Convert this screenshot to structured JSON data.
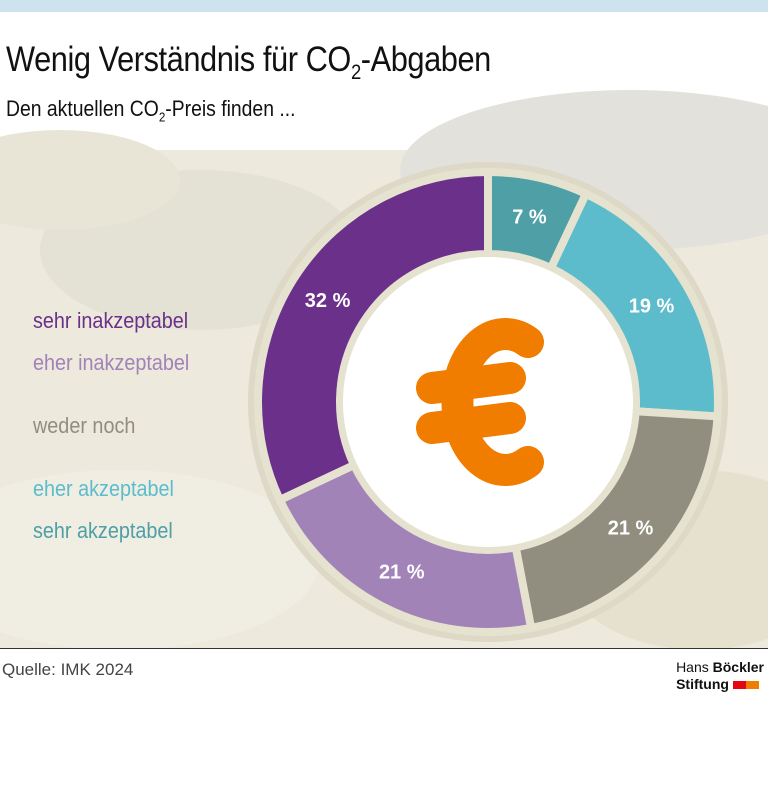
{
  "title": {
    "pre": "Wenig Verständnis für CO",
    "sub": "2",
    "post": "-Abgaben"
  },
  "subtitle": {
    "pre": "Den aktuellen CO",
    "sub": "2",
    "post": "-Preis finden ..."
  },
  "chart_data": {
    "type": "pie",
    "donut": true,
    "series": [
      {
        "name": "sehr akzeptabel",
        "value": 7,
        "label": "7 %",
        "color": "#4e9fa6"
      },
      {
        "name": "eher akzeptabel",
        "value": 19,
        "label": "19 %",
        "color": "#5dbccc"
      },
      {
        "name": "weder noch",
        "value": 21,
        "label": "21 %",
        "color": "#918e80"
      },
      {
        "name": "eher inakzeptabel",
        "value": 21,
        "label": "21 %",
        "color": "#a183b8"
      },
      {
        "name": "sehr inakzeptabel",
        "value": 32,
        "label": "32 %",
        "color": "#6b318a"
      }
    ],
    "legend": [
      "sehr inakzeptabel",
      "eher inakzeptabel",
      "weder noch",
      "eher akzeptabel",
      "sehr akzeptabel"
    ],
    "legend_placement": "left",
    "center_icon": "euro-icon",
    "center_icon_color": "#f07d00"
  },
  "source": "Quelle: IMK 2024",
  "logo": {
    "line1a": "Hans ",
    "line1b": "Böckler",
    "line2": "Stiftung"
  }
}
